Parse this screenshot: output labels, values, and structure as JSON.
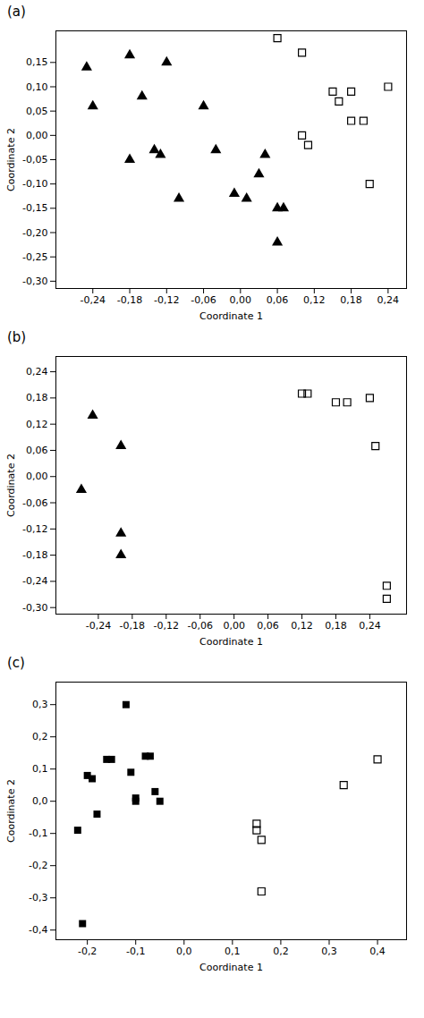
{
  "chart_data": [
    {
      "type": "scatter",
      "title": "(a)",
      "xlabel": "Coordinate 1",
      "ylabel": "Coordinate 2",
      "series": [
        {
          "color": "black",
          "marker": "triangle",
          "x": [
            -0.25,
            -0.24,
            -0.18,
            -0.18,
            -0.16,
            -0.14,
            -0.13,
            -0.12,
            -0.1,
            -0.06,
            -0.04,
            -0.01,
            0.01,
            0.03,
            0.06,
            0.06,
            0.07,
            0.04
          ],
          "y": [
            0.14,
            0.06,
            0.165,
            -0.05,
            0.08,
            -0.03,
            -0.04,
            0.15,
            -0.13,
            0.06,
            -0.03,
            -0.12,
            -0.13,
            -0.08,
            -0.22,
            -0.15,
            -0.15,
            -0.04
          ]
        },
        {
          "color": "black",
          "marker": "square_open",
          "x": [
            0.06,
            0.1,
            0.15,
            0.16,
            0.18,
            0.1,
            0.11,
            0.18,
            0.2,
            0.21,
            0.24
          ],
          "y": [
            0.2,
            0.17,
            0.09,
            0.07,
            0.09,
            0.0,
            -0.02,
            0.03,
            0.03,
            -0.1,
            0.1
          ]
        }
      ],
      "xlim": [
        -0.3,
        0.27
      ],
      "ylim": [
        -0.315,
        0.215
      ],
      "xticks": [
        {
          "value": -0.24,
          "label": "-0,24"
        },
        {
          "value": -0.18,
          "label": "-0,18"
        },
        {
          "value": -0.12,
          "label": "-0,12"
        },
        {
          "value": -0.06,
          "label": "-0,06"
        },
        {
          "value": 0.0,
          "label": "0,00"
        },
        {
          "value": 0.06,
          "label": "0,06"
        },
        {
          "value": 0.12,
          "label": "0,12"
        },
        {
          "value": 0.18,
          "label": "0,18"
        },
        {
          "value": 0.24,
          "label": "0,24"
        }
      ],
      "yticks": [
        {
          "value": -0.3,
          "label": "-0,30"
        },
        {
          "value": -0.25,
          "label": "-0,25"
        },
        {
          "value": -0.2,
          "label": "-0,20"
        },
        {
          "value": -0.15,
          "label": "-0,15"
        },
        {
          "value": -0.1,
          "label": "-0,10"
        },
        {
          "value": -0.05,
          "label": "-0,05"
        },
        {
          "value": 0.0,
          "label": "0,00"
        },
        {
          "value": 0.05,
          "label": "0,05"
        },
        {
          "value": 0.1,
          "label": "0,10"
        },
        {
          "value": 0.15,
          "label": "0,15"
        }
      ],
      "grid": false
    },
    {
      "type": "scatter",
      "title": "(b)",
      "xlabel": "Coordinate 1",
      "ylabel": "Coordinate 2",
      "series": [
        {
          "color": "black",
          "marker": "triangle",
          "x": [
            -0.27,
            -0.25,
            -0.2,
            -0.2,
            -0.2
          ],
          "y": [
            -0.03,
            0.14,
            0.07,
            -0.13,
            -0.18
          ]
        },
        {
          "color": "black",
          "marker": "square_open",
          "x": [
            0.12,
            0.13,
            0.18,
            0.2,
            0.24,
            0.25,
            0.27,
            0.27
          ],
          "y": [
            0.19,
            0.19,
            0.17,
            0.17,
            0.18,
            0.07,
            -0.25,
            -0.28
          ]
        }
      ],
      "xlim": [
        -0.315,
        0.305
      ],
      "ylim": [
        -0.315,
        0.275
      ],
      "xticks": [
        {
          "value": -0.24,
          "label": "-0,24"
        },
        {
          "value": -0.18,
          "label": "-0,18"
        },
        {
          "value": -0.12,
          "label": "-0,12"
        },
        {
          "value": -0.06,
          "label": "-0,06"
        },
        {
          "value": 0.0,
          "label": "0,00"
        },
        {
          "value": 0.06,
          "label": "0,06"
        },
        {
          "value": 0.12,
          "label": "0,12"
        },
        {
          "value": 0.18,
          "label": "0,18"
        },
        {
          "value": 0.24,
          "label": "0,24"
        }
      ],
      "yticks": [
        {
          "value": -0.3,
          "label": "-0,30"
        },
        {
          "value": -0.24,
          "label": "-0,24"
        },
        {
          "value": -0.18,
          "label": "-0,18"
        },
        {
          "value": -0.12,
          "label": "-0,12"
        },
        {
          "value": -0.06,
          "label": "-0,06"
        },
        {
          "value": 0.0,
          "label": "0,00"
        },
        {
          "value": 0.06,
          "label": "0,06"
        },
        {
          "value": 0.12,
          "label": "0,12"
        },
        {
          "value": 0.18,
          "label": "0,18"
        },
        {
          "value": 0.24,
          "label": "0,24"
        }
      ],
      "grid": false
    },
    {
      "type": "scatter",
      "title": "(c)",
      "xlabel": "Coordinate 1",
      "ylabel": "Coordinate 2",
      "series": [
        {
          "color": "black",
          "marker": "square",
          "x": [
            -0.22,
            -0.21,
            -0.2,
            -0.19,
            -0.18,
            -0.16,
            -0.15,
            -0.12,
            -0.11,
            -0.1,
            -0.1,
            -0.08,
            -0.07,
            -0.06,
            -0.05
          ],
          "y": [
            -0.09,
            -0.38,
            0.08,
            0.07,
            -0.04,
            0.13,
            0.13,
            0.3,
            0.09,
            0.0,
            0.01,
            0.14,
            0.14,
            0.03,
            0.0
          ]
        },
        {
          "color": "black",
          "marker": "square_open",
          "x": [
            0.15,
            0.15,
            0.16,
            0.16,
            0.33,
            0.4
          ],
          "y": [
            -0.07,
            -0.09,
            -0.12,
            -0.28,
            0.05,
            0.13
          ]
        }
      ],
      "xlim": [
        -0.265,
        0.46
      ],
      "ylim": [
        -0.43,
        0.37
      ],
      "xticks": [
        {
          "value": -0.2,
          "label": "-0,2"
        },
        {
          "value": -0.1,
          "label": "-0,1"
        },
        {
          "value": 0.0,
          "label": "0,0"
        },
        {
          "value": 0.1,
          "label": "0,1"
        },
        {
          "value": 0.2,
          "label": "0,2"
        },
        {
          "value": 0.3,
          "label": "0,3"
        },
        {
          "value": 0.4,
          "label": "0,4"
        }
      ],
      "yticks": [
        {
          "value": -0.4,
          "label": "-0,4"
        },
        {
          "value": -0.3,
          "label": "-0,3"
        },
        {
          "value": -0.2,
          "label": "-0,2"
        },
        {
          "value": -0.1,
          "label": "-0,1"
        },
        {
          "value": 0.0,
          "label": "0,0"
        },
        {
          "value": 0.1,
          "label": "0,1"
        },
        {
          "value": 0.2,
          "label": "0,2"
        },
        {
          "value": 0.3,
          "label": "0,3"
        }
      ],
      "grid": false
    }
  ]
}
